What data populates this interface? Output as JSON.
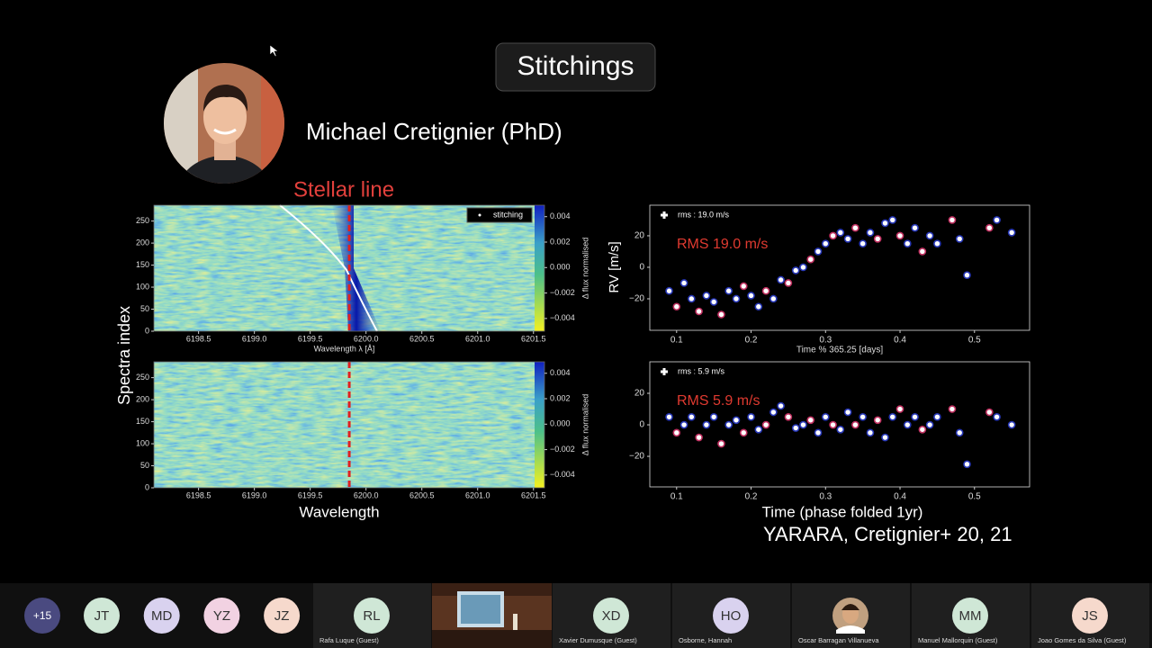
{
  "slide": {
    "title": "Stitchings",
    "presenter": "Michael Cretignier (PhD)",
    "annotation": "Stellar line",
    "heatmaps": {
      "ylabel": "Spectra index",
      "xlabel": "Wavelength",
      "marker_wavelength": 6199.85,
      "panels": [
        {
          "legend": "stitching",
          "xaxis_label": "Wavelength λ [Å]",
          "colorbar_label": "Δ flux normalised",
          "xlim": [
            6198.1,
            6201.51
          ],
          "ylim": [
            0,
            286
          ],
          "cbar_lim": [
            -0.005,
            0.0049
          ],
          "xticks": [
            6198.5,
            {
              "value": 6199,
              "label": "6199.0"
            },
            6199.5,
            {
              "value": 6200,
              "label": "6200.0"
            },
            6200.5,
            {
              "value": 6201,
              "label": "6201.0"
            },
            6201.5
          ],
          "yticks": [
            0,
            50,
            100,
            150,
            200,
            250
          ],
          "cbar_ticks": [
            0.004,
            0.002,
            {
              "value": 0,
              "label": "0.000"
            },
            {
              "value": -0.002,
              "label": "−0.002"
            },
            {
              "value": -0.004,
              "label": "−0.004"
            }
          ]
        },
        {
          "colorbar_label": "Δ flux normalised",
          "xlim": [
            6198.1,
            6201.51
          ],
          "ylim": [
            0,
            286
          ],
          "cbar_lim": [
            -0.005,
            0.0049
          ],
          "xticks": [
            6198.5,
            {
              "value": 6199,
              "label": "6199.0"
            },
            6199.5,
            {
              "value": 6200,
              "label": "6200.0"
            },
            6200.5,
            {
              "value": 6201,
              "label": "6201.0"
            },
            6201.5
          ],
          "yticks": [
            0,
            50,
            100,
            150,
            200,
            250
          ],
          "cbar_ticks": [
            0.004,
            0.002,
            {
              "value": 0,
              "label": "0.000"
            },
            {
              "value": -0.002,
              "label": "−0.002"
            },
            {
              "value": -0.004,
              "label": "−0.004"
            }
          ]
        }
      ]
    },
    "rv": {
      "ylabel": "RV [m/s]",
      "xlabel": "Time (phase folded 1yr)",
      "panels": [
        {
          "legend": "rms : 19.0 m/s",
          "annotation": "RMS 19.0 m/s",
          "xaxis_label": "Time % 365.25 [days]",
          "xlim": [
            0.064,
            0.574
          ],
          "ylim": [
            -40,
            39.4
          ],
          "xticks": [
            0.1,
            0.2,
            0.3,
            0.4,
            0.5
          ],
          "yticks": [
            {
              "value": -20,
              "label": "−20"
            },
            0,
            20
          ],
          "x": [
            0.09,
            0.1,
            0.11,
            0.12,
            0.13,
            0.14,
            0.15,
            0.16,
            0.17,
            0.18,
            0.19,
            0.2,
            0.21,
            0.22,
            0.23,
            0.24,
            0.25,
            0.26,
            0.27,
            0.28,
            0.29,
            0.3,
            0.31,
            0.32,
            0.33,
            0.34,
            0.35,
            0.36,
            0.37,
            0.38,
            0.39,
            0.4,
            0.41,
            0.42,
            0.43,
            0.44,
            0.45,
            0.47,
            0.48,
            0.49,
            0.52,
            0.53,
            0.55
          ],
          "y": [
            -15,
            -25,
            -10,
            -20,
            -28,
            -18,
            -22,
            -30,
            -15,
            -20,
            -12,
            -18,
            -25,
            -15,
            -20,
            -8,
            -10,
            -2,
            0,
            5,
            10,
            15,
            20,
            22,
            18,
            25,
            15,
            22,
            18,
            28,
            30,
            20,
            15,
            25,
            10,
            20,
            15,
            30,
            18,
            -5,
            25,
            30,
            22
          ]
        },
        {
          "legend": "rms : 5.9 m/s",
          "annotation": "RMS 5.9 m/s",
          "xlim": [
            0.064,
            0.574
          ],
          "ylim": [
            -39.4,
            40
          ],
          "xticks": [
            0.1,
            0.2,
            0.3,
            0.4,
            0.5
          ],
          "yticks": [
            {
              "value": -20,
              "label": "−20"
            },
            0,
            20
          ],
          "x": [
            0.09,
            0.1,
            0.11,
            0.12,
            0.13,
            0.14,
            0.15,
            0.16,
            0.17,
            0.18,
            0.19,
            0.2,
            0.21,
            0.22,
            0.23,
            0.24,
            0.25,
            0.26,
            0.27,
            0.28,
            0.29,
            0.3,
            0.31,
            0.32,
            0.33,
            0.34,
            0.35,
            0.36,
            0.37,
            0.38,
            0.39,
            0.4,
            0.41,
            0.42,
            0.43,
            0.44,
            0.45,
            0.47,
            0.48,
            0.49,
            0.52,
            0.53,
            0.55
          ],
          "y": [
            5,
            -5,
            0,
            5,
            -8,
            0,
            5,
            -12,
            0,
            3,
            -5,
            5,
            -3,
            0,
            8,
            12,
            5,
            -2,
            0,
            3,
            -5,
            5,
            0,
            -3,
            8,
            0,
            5,
            -5,
            3,
            -8,
            5,
            10,
            0,
            5,
            -3,
            0,
            5,
            10,
            -5,
            -25,
            8,
            5,
            0
          ]
        }
      ]
    },
    "citation": "YARARA, Cretignier+ 20, 21"
  },
  "participants": {
    "overflow": "+15",
    "avatars": [
      {
        "initials": "JT",
        "color": "#cfe7d6"
      },
      {
        "initials": "MD",
        "color": "#d9d2ef"
      },
      {
        "initials": "YZ",
        "color": "#f2d2e2"
      },
      {
        "initials": "JZ",
        "color": "#f6d9cc"
      }
    ],
    "tiles": [
      {
        "initials": "RL",
        "name": "Rafa Luque (Guest)",
        "color": "#cfe7d6"
      },
      {
        "initials": "XD",
        "name": "Xavier Dumusque (Guest)",
        "color": "#cfe7d6"
      },
      {
        "initials": "HO",
        "name": "Osborne, Hannah",
        "color": "#d9d2ef"
      },
      {
        "name": "Oscar Barragan Villanueva"
      },
      {
        "initials": "MM",
        "name": "Manuel Mallorquin (Guest)",
        "color": "#cfe7d6"
      },
      {
        "initials": "JS",
        "name": "Joao Gomes da Silva (Guest)",
        "color": "#f6d9cc"
      }
    ]
  }
}
